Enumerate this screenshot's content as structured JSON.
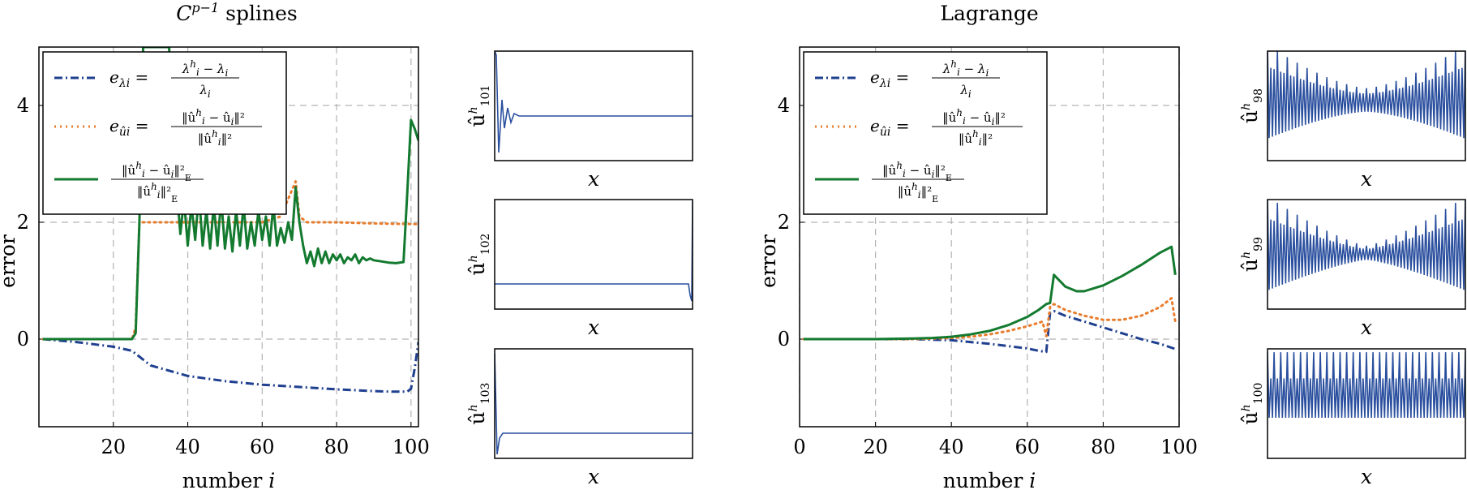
{
  "chart_data": [
    {
      "type": "line",
      "title": "C^{p-1} splines",
      "xlabel": "number i",
      "ylabel": "error",
      "xlim": [
        0,
        102
      ],
      "ylim": [
        -1.5,
        5
      ],
      "xticks": [
        "20",
        "40",
        "60",
        "80",
        "100"
      ],
      "yticks": [
        "0",
        "2",
        "4"
      ],
      "grid": true,
      "legend_position": "top-left",
      "legend_labels": [
        "e_{λ_i} = (λ_i^h − λ_i) / λ_i",
        "e_{û_i} = ‖û_i^h − û_i‖² / ‖û_i^h‖²",
        "‖û_i^h − û_i‖²_E / ‖û_i^h‖²_E"
      ],
      "series": [
        {
          "color": "#1f3f8f",
          "style": "dash-dot",
          "x": [
            1,
            10,
            20,
            25,
            30,
            40,
            50,
            60,
            70,
            80,
            90,
            95,
            99,
            100,
            101,
            102
          ],
          "y": [
            0,
            -0.05,
            -0.13,
            -0.2,
            -0.45,
            -0.63,
            -0.72,
            -0.78,
            -0.82,
            -0.86,
            -0.89,
            -0.9,
            -0.9,
            -0.85,
            -0.5,
            -0.05
          ]
        },
        {
          "color": "#e87d2e",
          "style": "dotted",
          "x": [
            1,
            25,
            26,
            27,
            30,
            40,
            50,
            60,
            65,
            69,
            70,
            72,
            80,
            90,
            100,
            102
          ],
          "y": [
            0,
            0,
            0.2,
            2.0,
            2.0,
            2.0,
            2.0,
            2.0,
            2.1,
            2.7,
            2.1,
            2.0,
            2.0,
            1.98,
            1.97,
            1.97
          ],
          "envelope": "dotted plateau near 2 after i≈26 with a peak near i≈69"
        },
        {
          "color": "#137a2f",
          "style": "solid",
          "x": [
            1,
            20,
            25,
            26,
            27,
            28,
            29,
            30,
            31,
            32,
            33,
            34,
            35,
            36,
            37,
            38,
            39,
            40,
            41,
            42,
            43,
            44,
            45,
            46,
            47,
            48,
            49,
            50,
            51,
            52,
            53,
            54,
            55,
            56,
            57,
            58,
            59,
            60,
            61,
            62,
            63,
            64,
            65,
            66,
            67,
            68,
            69,
            70,
            71,
            72,
            73,
            74,
            75,
            76,
            77,
            78,
            79,
            80,
            81,
            82,
            83,
            84,
            85,
            86,
            87,
            88,
            89,
            90,
            92,
            94,
            96,
            98,
            99,
            100,
            101,
            102
          ],
          "y": [
            0,
            0,
            0,
            0.1,
            2.0,
            5.0,
            5.0,
            5.0,
            5.0,
            5.0,
            5.0,
            5.0,
            5.0,
            2.2,
            2.6,
            1.8,
            2.4,
            1.6,
            2.3,
            1.7,
            2.5,
            1.6,
            2.2,
            1.55,
            2.3,
            1.6,
            2.4,
            1.55,
            2.1,
            1.5,
            2.2,
            1.6,
            2.3,
            1.55,
            2.0,
            1.6,
            2.2,
            1.7,
            2.1,
            1.6,
            2.3,
            1.6,
            1.9,
            1.65,
            2.0,
            1.7,
            2.6,
            2.0,
            1.6,
            1.3,
            1.5,
            1.25,
            1.55,
            1.3,
            1.5,
            1.3,
            1.45,
            1.35,
            1.45,
            1.3,
            1.4,
            1.35,
            1.45,
            1.3,
            1.4,
            1.35,
            1.38,
            1.35,
            1.33,
            1.31,
            1.3,
            1.32,
            2.5,
            3.75,
            3.6,
            3.4
          ]
        }
      ]
    },
    {
      "type": "line",
      "title": "Lagrange",
      "xlabel": "number i",
      "ylabel": "error",
      "xlim": [
        0,
        100
      ],
      "ylim": [
        -1.5,
        5
      ],
      "xticks": [
        "0",
        "20",
        "40",
        "60",
        "80",
        "100"
      ],
      "yticks": [
        "0",
        "2",
        "4"
      ],
      "grid": true,
      "legend_position": "top-left",
      "legend_labels": [
        "e_{λ_i} = (λ_i^h − λ_i) / λ_i",
        "e_{û_i} = ‖û_i^h − û_i‖² / ‖û_i^h‖²",
        "‖û_i^h − û_i‖²_E / ‖û_i^h‖²_E"
      ],
      "series": [
        {
          "color": "#1f3f8f",
          "style": "dash-dot",
          "x": [
            1,
            20,
            30,
            40,
            45,
            50,
            55,
            60,
            63,
            65,
            66,
            67,
            70,
            75,
            80,
            85,
            90,
            95,
            99
          ],
          "y": [
            0,
            0,
            0,
            -0.02,
            -0.05,
            -0.08,
            -0.12,
            -0.16,
            -0.2,
            -0.22,
            0.45,
            0.48,
            0.4,
            0.3,
            0.2,
            0.1,
            0.0,
            -0.08,
            -0.17
          ]
        },
        {
          "color": "#e87d2e",
          "style": "dotted",
          "x": [
            1,
            20,
            30,
            40,
            45,
            50,
            55,
            60,
            64,
            65,
            66,
            67,
            70,
            75,
            80,
            85,
            90,
            95,
            98,
            99
          ],
          "y": [
            0,
            0,
            0,
            0.02,
            0.04,
            0.08,
            0.14,
            0.22,
            0.3,
            0.05,
            0.55,
            0.6,
            0.5,
            0.4,
            0.33,
            0.33,
            0.4,
            0.55,
            0.7,
            0.3
          ]
        },
        {
          "color": "#137a2f",
          "style": "solid",
          "x": [
            1,
            20,
            30,
            35,
            40,
            45,
            50,
            55,
            60,
            63,
            65,
            66,
            67,
            70,
            73,
            75,
            80,
            85,
            90,
            95,
            98,
            99
          ],
          "y": [
            0,
            0,
            0.01,
            0.02,
            0.04,
            0.08,
            0.14,
            0.24,
            0.38,
            0.5,
            0.6,
            0.62,
            1.1,
            0.9,
            0.82,
            0.82,
            0.92,
            1.08,
            1.27,
            1.48,
            1.58,
            1.1
          ]
        }
      ]
    },
    {
      "type": "line",
      "small_multiples": [
        {
          "ylabel": "û^h_101",
          "xlabel": "x",
          "shape": "left spike with damped wiggle, then flat"
        },
        {
          "ylabel": "û^h_102",
          "xlabel": "x",
          "shape": "flat line with small dip at right end; sharp spike at far right"
        },
        {
          "ylabel": "û^h_103",
          "xlabel": "x",
          "shape": "sharp dip at left end, then flat"
        }
      ]
    },
    {
      "type": "line",
      "small_multiples": [
        {
          "ylabel": "û^h_98",
          "xlabel": "x",
          "shape": "oscillation, large at both ends, small in middle"
        },
        {
          "ylabel": "û^h_99",
          "xlabel": "x",
          "shape": "oscillation, large at both ends, small in middle"
        },
        {
          "ylabel": "û^h_100",
          "xlabel": "x",
          "shape": "uniform high-frequency oscillation"
        }
      ]
    }
  ]
}
